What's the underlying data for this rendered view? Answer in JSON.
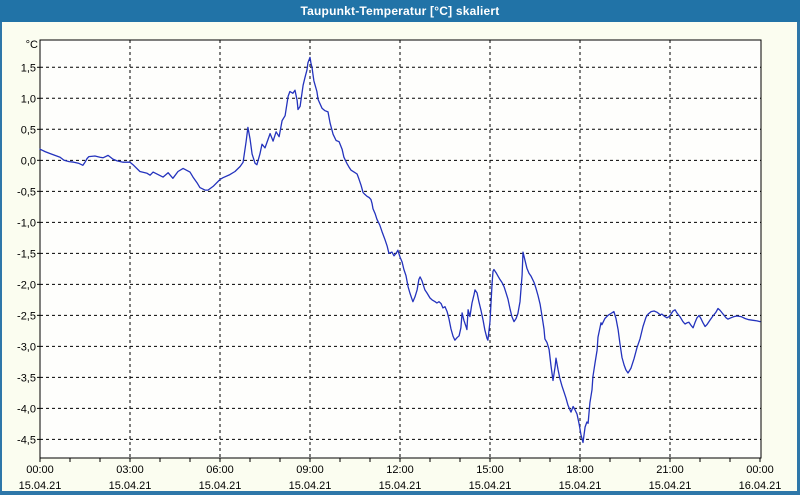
{
  "window": {
    "title": "Taupunkt-Temperatur [°C] skaliert",
    "colors": {
      "title_bar": "#2173a7",
      "title_text": "#ffffff",
      "frame": "#2e77a9",
      "background": "#fbfdf0",
      "plot_background": "#fefefc",
      "grid": "#000000",
      "axis_text": "#000000"
    }
  },
  "chart_data": {
    "type": "line",
    "title": "Taupunkt-Temperatur [°C] skaliert",
    "ylabel_unit": "°C",
    "ylim": [
      -4.8,
      1.94
    ],
    "xlim_hours": [
      0,
      24
    ],
    "grid": "dashed",
    "legend": "none",
    "y_ticks": [
      {
        "value": 1.5,
        "label": "1,5"
      },
      {
        "value": 1.0,
        "label": "1,0"
      },
      {
        "value": 0.5,
        "label": "0,5"
      },
      {
        "value": 0.0,
        "label": "0,0"
      },
      {
        "value": -0.5,
        "label": "-0,5"
      },
      {
        "value": -1.0,
        "label": "-1,0"
      },
      {
        "value": -1.5,
        "label": "-1,5"
      },
      {
        "value": -2.0,
        "label": "-2,0"
      },
      {
        "value": -2.5,
        "label": "-2,5"
      },
      {
        "value": -3.0,
        "label": "-3,0"
      },
      {
        "value": -3.5,
        "label": "-3,5"
      },
      {
        "value": -4.0,
        "label": "-4,0"
      },
      {
        "value": -4.5,
        "label": "-4,5"
      }
    ],
    "x_ticks": [
      {
        "hour": 0,
        "time": "00:00",
        "date": "15.04.21"
      },
      {
        "hour": 3,
        "time": "03:00",
        "date": "15.04.21"
      },
      {
        "hour": 6,
        "time": "06:00",
        "date": "15.04.21"
      },
      {
        "hour": 9,
        "time": "09:00",
        "date": "15.04.21"
      },
      {
        "hour": 12,
        "time": "12:00",
        "date": "15.04.21"
      },
      {
        "hour": 15,
        "time": "15:00",
        "date": "15.04.21"
      },
      {
        "hour": 18,
        "time": "18:00",
        "date": "15.04.21"
      },
      {
        "hour": 21,
        "time": "21:00",
        "date": "15.04.21"
      },
      {
        "hour": 24,
        "time": "00:00",
        "date": "16.04.21"
      }
    ],
    "minor_x_tick_every_hours": 1,
    "series": [
      {
        "name": "Taupunkt-Temperatur skaliert",
        "color": "#2433bd",
        "points": [
          [
            0.0,
            0.18
          ],
          [
            0.17,
            0.14
          ],
          [
            0.33,
            0.11
          ],
          [
            0.5,
            0.08
          ],
          [
            0.67,
            0.05
          ],
          [
            0.8,
            0.0
          ],
          [
            0.97,
            -0.02
          ],
          [
            1.13,
            -0.03
          ],
          [
            1.3,
            -0.05
          ],
          [
            1.43,
            -0.08
          ],
          [
            1.5,
            -0.03
          ],
          [
            1.57,
            0.03
          ],
          [
            1.63,
            0.06
          ],
          [
            1.83,
            0.07
          ],
          [
            2.0,
            0.05
          ],
          [
            2.1,
            0.04
          ],
          [
            2.27,
            0.08
          ],
          [
            2.43,
            0.02
          ],
          [
            2.57,
            -0.01
          ],
          [
            2.77,
            -0.03
          ],
          [
            3.0,
            -0.03
          ],
          [
            3.1,
            -0.07
          ],
          [
            3.33,
            -0.18
          ],
          [
            3.57,
            -0.21
          ],
          [
            3.67,
            -0.24
          ],
          [
            3.77,
            -0.19
          ],
          [
            4.1,
            -0.27
          ],
          [
            4.27,
            -0.2
          ],
          [
            4.43,
            -0.29
          ],
          [
            4.6,
            -0.18
          ],
          [
            4.77,
            -0.13
          ],
          [
            5.0,
            -0.19
          ],
          [
            5.1,
            -0.27
          ],
          [
            5.23,
            -0.36
          ],
          [
            5.33,
            -0.44
          ],
          [
            5.5,
            -0.48
          ],
          [
            5.6,
            -0.48
          ],
          [
            5.77,
            -0.42
          ],
          [
            6.0,
            -0.31
          ],
          [
            6.1,
            -0.28
          ],
          [
            6.33,
            -0.23
          ],
          [
            6.5,
            -0.18
          ],
          [
            6.67,
            -0.1
          ],
          [
            6.77,
            -0.03
          ],
          [
            6.87,
            0.3
          ],
          [
            6.93,
            0.53
          ],
          [
            7.0,
            0.35
          ],
          [
            7.07,
            0.1
          ],
          [
            7.17,
            -0.05
          ],
          [
            7.23,
            -0.07
          ],
          [
            7.33,
            0.1
          ],
          [
            7.4,
            0.26
          ],
          [
            7.5,
            0.2
          ],
          [
            7.67,
            0.43
          ],
          [
            7.77,
            0.31
          ],
          [
            7.87,
            0.46
          ],
          [
            7.97,
            0.38
          ],
          [
            8.07,
            0.64
          ],
          [
            8.17,
            0.72
          ],
          [
            8.27,
            1.03
          ],
          [
            8.33,
            1.11
          ],
          [
            8.43,
            1.08
          ],
          [
            8.5,
            1.13
          ],
          [
            8.57,
            0.97
          ],
          [
            8.6,
            0.82
          ],
          [
            8.67,
            0.87
          ],
          [
            8.77,
            1.21
          ],
          [
            8.83,
            1.33
          ],
          [
            8.9,
            1.46
          ],
          [
            8.93,
            1.57
          ],
          [
            9.0,
            1.66
          ],
          [
            9.03,
            1.57
          ],
          [
            9.07,
            1.49
          ],
          [
            9.1,
            1.38
          ],
          [
            9.13,
            1.28
          ],
          [
            9.23,
            1.11
          ],
          [
            9.27,
            0.98
          ],
          [
            9.4,
            0.84
          ],
          [
            9.5,
            0.8
          ],
          [
            9.6,
            0.78
          ],
          [
            9.67,
            0.6
          ],
          [
            9.77,
            0.42
          ],
          [
            9.87,
            0.32
          ],
          [
            9.97,
            0.3
          ],
          [
            10.07,
            0.18
          ],
          [
            10.13,
            0.05
          ],
          [
            10.23,
            -0.05
          ],
          [
            10.3,
            -0.11
          ],
          [
            10.37,
            -0.16
          ],
          [
            10.47,
            -0.19
          ],
          [
            10.57,
            -0.22
          ],
          [
            10.63,
            -0.3
          ],
          [
            10.7,
            -0.4
          ],
          [
            10.77,
            -0.52
          ],
          [
            10.83,
            -0.55
          ],
          [
            10.9,
            -0.58
          ],
          [
            10.97,
            -0.6
          ],
          [
            11.03,
            -0.63
          ],
          [
            11.07,
            -0.7
          ],
          [
            11.1,
            -0.78
          ],
          [
            11.17,
            -0.86
          ],
          [
            11.23,
            -0.95
          ],
          [
            11.33,
            -1.05
          ],
          [
            11.4,
            -1.15
          ],
          [
            11.5,
            -1.28
          ],
          [
            11.57,
            -1.38
          ],
          [
            11.63,
            -1.5
          ],
          [
            11.73,
            -1.48
          ],
          [
            11.8,
            -1.54
          ],
          [
            11.87,
            -1.5
          ],
          [
            11.93,
            -1.45
          ],
          [
            12.0,
            -1.56
          ],
          [
            12.07,
            -1.64
          ],
          [
            12.13,
            -1.76
          ],
          [
            12.2,
            -1.86
          ],
          [
            12.27,
            -2.04
          ],
          [
            12.33,
            -2.14
          ],
          [
            12.4,
            -2.24
          ],
          [
            12.43,
            -2.28
          ],
          [
            12.5,
            -2.2
          ],
          [
            12.57,
            -2.09
          ],
          [
            12.63,
            -1.92
          ],
          [
            12.67,
            -1.88
          ],
          [
            12.73,
            -1.94
          ],
          [
            12.83,
            -2.09
          ],
          [
            12.9,
            -2.14
          ],
          [
            13.0,
            -2.22
          ],
          [
            13.07,
            -2.25
          ],
          [
            13.17,
            -2.28
          ],
          [
            13.23,
            -2.3
          ],
          [
            13.3,
            -2.28
          ],
          [
            13.37,
            -2.31
          ],
          [
            13.43,
            -2.38
          ],
          [
            13.5,
            -2.36
          ],
          [
            13.57,
            -2.44
          ],
          [
            13.63,
            -2.55
          ],
          [
            13.7,
            -2.72
          ],
          [
            13.77,
            -2.84
          ],
          [
            13.83,
            -2.9
          ],
          [
            13.9,
            -2.86
          ],
          [
            13.97,
            -2.83
          ],
          [
            14.03,
            -2.7
          ],
          [
            14.07,
            -2.46
          ],
          [
            14.13,
            -2.58
          ],
          [
            14.2,
            -2.68
          ],
          [
            14.23,
            -2.73
          ],
          [
            14.27,
            -2.41
          ],
          [
            14.33,
            -2.52
          ],
          [
            14.4,
            -2.3
          ],
          [
            14.47,
            -2.16
          ],
          [
            14.5,
            -2.09
          ],
          [
            14.57,
            -2.14
          ],
          [
            14.63,
            -2.28
          ],
          [
            14.7,
            -2.42
          ],
          [
            14.77,
            -2.58
          ],
          [
            14.83,
            -2.74
          ],
          [
            14.9,
            -2.87
          ],
          [
            14.93,
            -2.9
          ],
          [
            15.0,
            -2.6
          ],
          [
            15.07,
            -1.98
          ],
          [
            15.1,
            -1.79
          ],
          [
            15.13,
            -1.76
          ],
          [
            15.2,
            -1.81
          ],
          [
            15.27,
            -1.87
          ],
          [
            15.33,
            -1.92
          ],
          [
            15.4,
            -1.97
          ],
          [
            15.47,
            -2.04
          ],
          [
            15.53,
            -2.13
          ],
          [
            15.6,
            -2.24
          ],
          [
            15.67,
            -2.4
          ],
          [
            15.73,
            -2.52
          ],
          [
            15.8,
            -2.6
          ],
          [
            15.87,
            -2.55
          ],
          [
            15.93,
            -2.47
          ],
          [
            16.0,
            -2.28
          ],
          [
            16.07,
            -1.85
          ],
          [
            16.1,
            -1.48
          ],
          [
            16.17,
            -1.62
          ],
          [
            16.23,
            -1.74
          ],
          [
            16.3,
            -1.82
          ],
          [
            16.37,
            -1.87
          ],
          [
            16.47,
            -1.97
          ],
          [
            16.53,
            -2.06
          ],
          [
            16.6,
            -2.18
          ],
          [
            16.67,
            -2.32
          ],
          [
            16.73,
            -2.5
          ],
          [
            16.8,
            -2.72
          ],
          [
            16.83,
            -2.88
          ],
          [
            16.9,
            -2.94
          ],
          [
            16.97,
            -3.05
          ],
          [
            17.03,
            -3.3
          ],
          [
            17.1,
            -3.55
          ],
          [
            17.17,
            -3.33
          ],
          [
            17.2,
            -3.19
          ],
          [
            17.27,
            -3.38
          ],
          [
            17.33,
            -3.52
          ],
          [
            17.4,
            -3.64
          ],
          [
            17.47,
            -3.74
          ],
          [
            17.53,
            -3.83
          ],
          [
            17.6,
            -3.95
          ],
          [
            17.67,
            -4.03
          ],
          [
            17.7,
            -4.06
          ],
          [
            17.77,
            -3.97
          ],
          [
            17.83,
            -4.02
          ],
          [
            17.9,
            -4.09
          ],
          [
            17.97,
            -4.25
          ],
          [
            18.03,
            -4.42
          ],
          [
            18.1,
            -4.55
          ],
          [
            18.17,
            -4.3
          ],
          [
            18.23,
            -4.22
          ],
          [
            18.27,
            -4.24
          ],
          [
            18.33,
            -3.91
          ],
          [
            18.4,
            -3.7
          ],
          [
            18.43,
            -3.49
          ],
          [
            18.5,
            -3.27
          ],
          [
            18.57,
            -3.06
          ],
          [
            18.6,
            -2.85
          ],
          [
            18.67,
            -2.69
          ],
          [
            18.7,
            -2.62
          ],
          [
            18.73,
            -2.65
          ],
          [
            18.83,
            -2.55
          ],
          [
            18.93,
            -2.5
          ],
          [
            19.03,
            -2.47
          ],
          [
            19.13,
            -2.44
          ],
          [
            19.2,
            -2.55
          ],
          [
            19.27,
            -2.73
          ],
          [
            19.33,
            -2.95
          ],
          [
            19.4,
            -3.18
          ],
          [
            19.47,
            -3.3
          ],
          [
            19.53,
            -3.38
          ],
          [
            19.6,
            -3.43
          ],
          [
            19.7,
            -3.35
          ],
          [
            19.8,
            -3.2
          ],
          [
            19.9,
            -3.02
          ],
          [
            20.0,
            -2.88
          ],
          [
            20.1,
            -2.68
          ],
          [
            20.2,
            -2.53
          ],
          [
            20.27,
            -2.48
          ],
          [
            20.37,
            -2.44
          ],
          [
            20.47,
            -2.43
          ],
          [
            20.57,
            -2.45
          ],
          [
            20.67,
            -2.49
          ],
          [
            20.73,
            -2.48
          ],
          [
            20.83,
            -2.52
          ],
          [
            20.9,
            -2.54
          ],
          [
            20.97,
            -2.52
          ],
          [
            21.03,
            -2.48
          ],
          [
            21.1,
            -2.43
          ],
          [
            21.17,
            -2.41
          ],
          [
            21.23,
            -2.46
          ],
          [
            21.33,
            -2.52
          ],
          [
            21.43,
            -2.6
          ],
          [
            21.5,
            -2.64
          ],
          [
            21.57,
            -2.62
          ],
          [
            21.63,
            -2.61
          ],
          [
            21.7,
            -2.66
          ],
          [
            21.77,
            -2.7
          ],
          [
            21.83,
            -2.62
          ],
          [
            21.9,
            -2.54
          ],
          [
            21.97,
            -2.5
          ],
          [
            22.03,
            -2.55
          ],
          [
            22.1,
            -2.62
          ],
          [
            22.17,
            -2.68
          ],
          [
            22.23,
            -2.65
          ],
          [
            22.33,
            -2.58
          ],
          [
            22.43,
            -2.51
          ],
          [
            22.53,
            -2.45
          ],
          [
            22.6,
            -2.39
          ],
          [
            22.67,
            -2.42
          ],
          [
            22.77,
            -2.48
          ],
          [
            22.87,
            -2.54
          ],
          [
            22.93,
            -2.56
          ],
          [
            23.03,
            -2.54
          ],
          [
            23.13,
            -2.52
          ],
          [
            23.23,
            -2.51
          ],
          [
            23.37,
            -2.52
          ],
          [
            23.5,
            -2.55
          ],
          [
            23.63,
            -2.57
          ],
          [
            23.77,
            -2.58
          ],
          [
            23.9,
            -2.59
          ],
          [
            24.0,
            -2.6
          ]
        ]
      }
    ]
  }
}
